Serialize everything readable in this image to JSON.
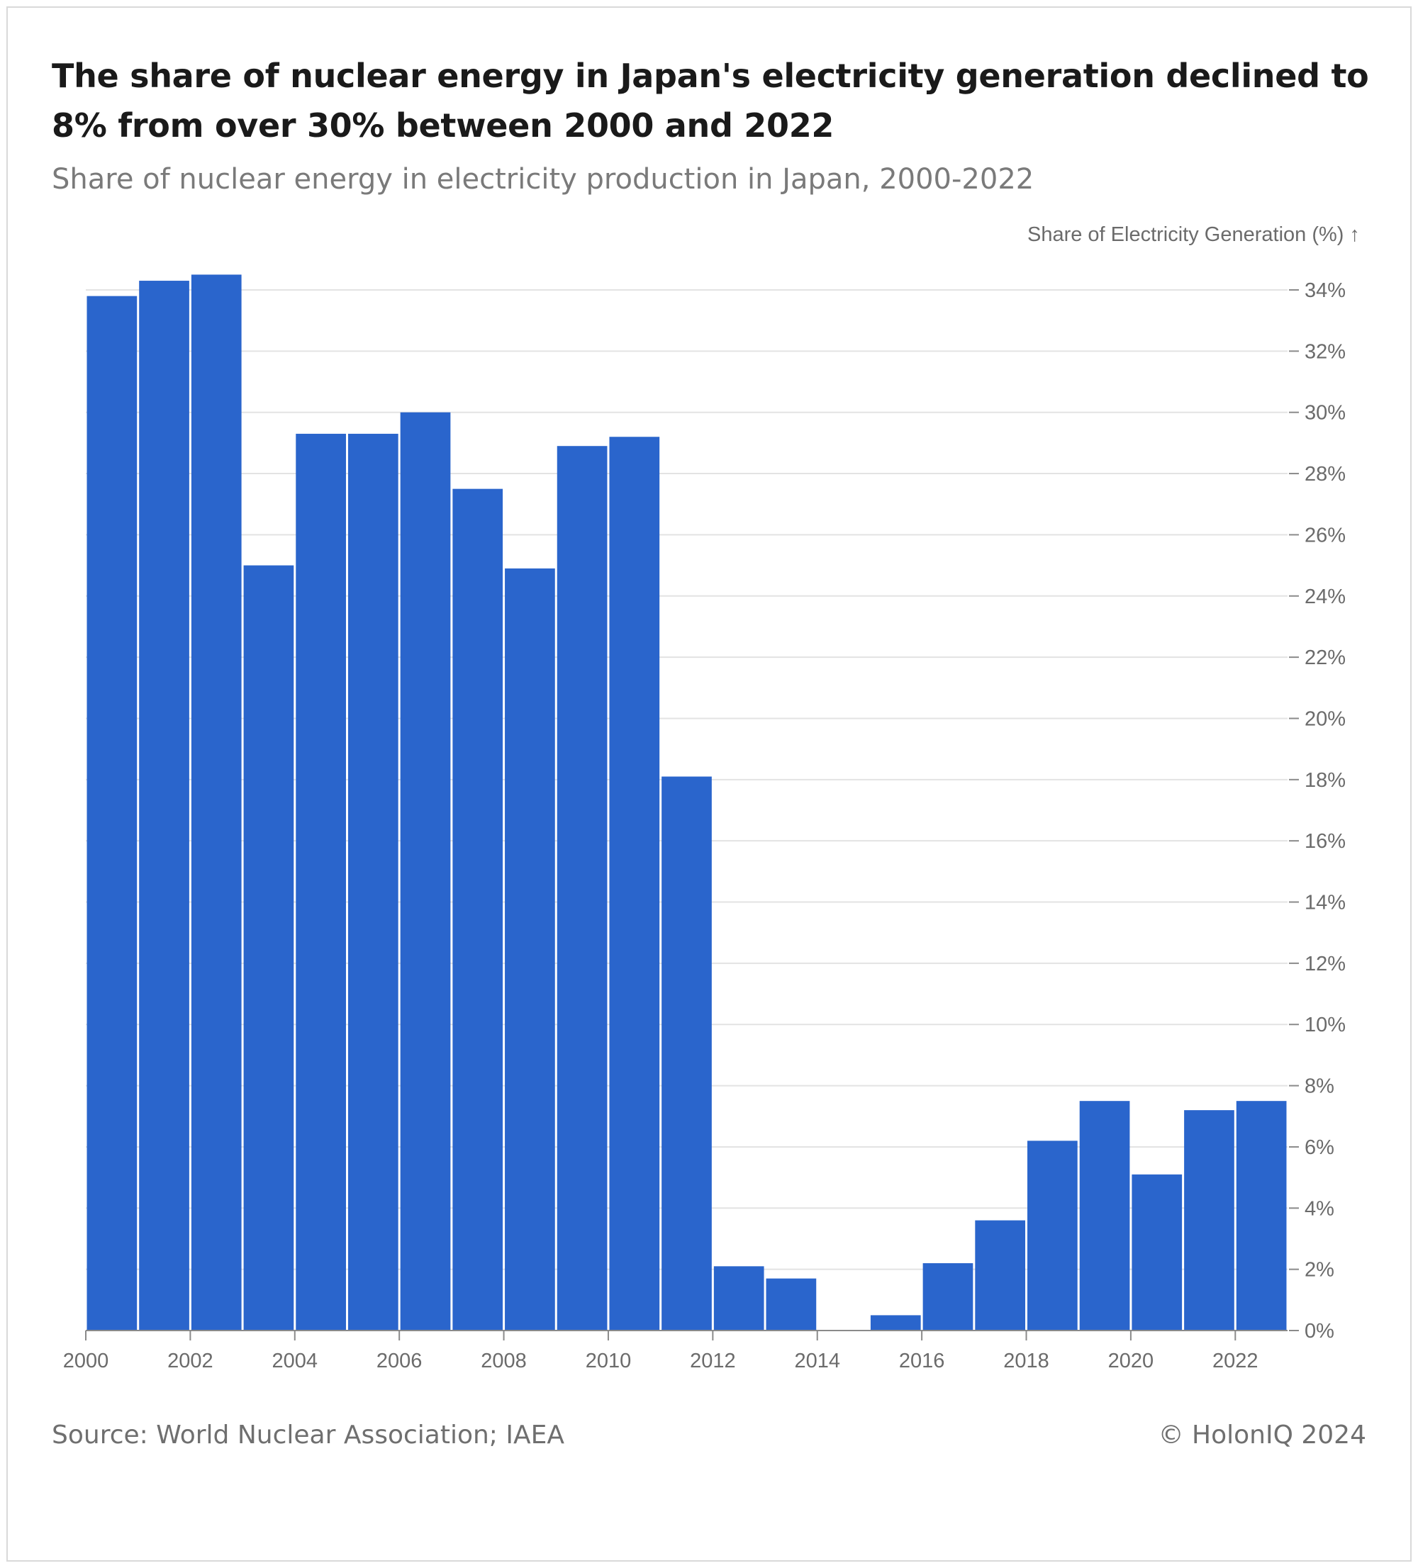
{
  "header": {
    "title": "The share of nuclear energy in Japan's electricity generation declined to 8% from over 30% between 2000 and 2022",
    "subtitle": "Share of nuclear energy in electricity production in Japan, 2000-2022"
  },
  "footer": {
    "source": "Source: World Nuclear Association; IAEA",
    "credit": "© HolonIQ 2024"
  },
  "colors": {
    "bar": "#2a65cc",
    "grid": "#e3e3e3",
    "axis_text": "#6b6b6b"
  },
  "chart_data": {
    "type": "bar",
    "title": "",
    "xlabel": "",
    "ylabel": "Share of Electricity Generation (%) ↑",
    "categories": [
      2000,
      2001,
      2002,
      2003,
      2004,
      2005,
      2006,
      2007,
      2008,
      2009,
      2010,
      2011,
      2012,
      2013,
      2014,
      2015,
      2016,
      2017,
      2018,
      2019,
      2020,
      2021,
      2022
    ],
    "values": [
      33.8,
      34.3,
      34.5,
      25.0,
      29.3,
      29.3,
      30.0,
      27.5,
      24.9,
      28.9,
      29.2,
      18.1,
      2.1,
      1.7,
      0.0,
      0.5,
      2.2,
      3.6,
      6.2,
      7.5,
      5.1,
      7.2,
      7.5
    ],
    "ylim": [
      0,
      34
    ],
    "yticks": [
      0,
      2,
      4,
      6,
      8,
      10,
      12,
      14,
      16,
      18,
      20,
      22,
      24,
      26,
      28,
      30,
      32,
      34
    ],
    "ytick_labels": [
      "0%",
      "2%",
      "4%",
      "6%",
      "8%",
      "10%",
      "12%",
      "14%",
      "16%",
      "18%",
      "20%",
      "22%",
      "24%",
      "26%",
      "28%",
      "30%",
      "32%",
      "34%"
    ],
    "xticks": [
      2000,
      2002,
      2004,
      2006,
      2008,
      2010,
      2012,
      2014,
      2016,
      2018,
      2020,
      2022
    ],
    "xtick_labels": [
      "2000",
      "2002",
      "2004",
      "2006",
      "2008",
      "2010",
      "2012",
      "2014",
      "2016",
      "2018",
      "2020",
      "2022"
    ],
    "y_axis_side": "right",
    "grid": true,
    "legend": "none"
  }
}
